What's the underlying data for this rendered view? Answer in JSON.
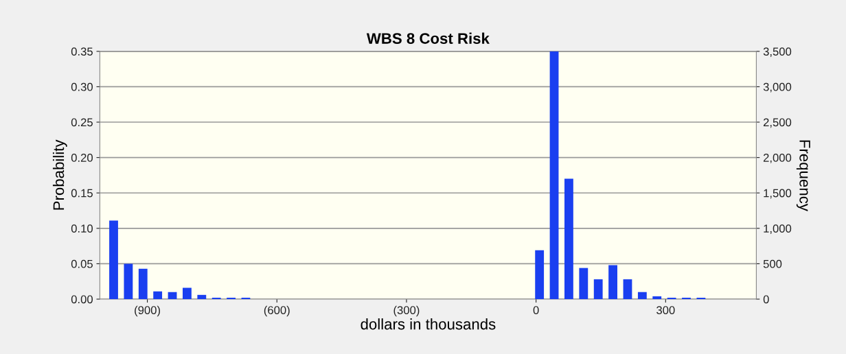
{
  "chart_data": {
    "type": "histogram",
    "title": "WBS 8 Cost Risk",
    "xlabel": "dollars in thousands",
    "ylabel": "Probability",
    "y2label": "Frequency",
    "bins": [
      -995,
      -961,
      -927,
      -893,
      -859,
      -825,
      -791,
      -757,
      -723,
      -689,
      -655,
      -621,
      -587,
      -553,
      -519,
      -485,
      -451,
      -417,
      -383,
      -349,
      -315,
      -281,
      -247,
      -213,
      -179,
      -145,
      -111,
      -77,
      -43,
      -9,
      25,
      59,
      93,
      127,
      161,
      195,
      229,
      263,
      297,
      331,
      365,
      399
    ],
    "values": [
      0.111,
      0.05,
      0.043,
      0.011,
      0.01,
      0.016,
      0.006,
      0.002,
      0.002,
      0.002,
      0,
      0,
      0,
      0,
      0,
      0,
      0,
      0,
      0,
      0,
      0,
      0,
      0,
      0,
      0,
      0,
      0,
      0,
      0,
      0.069,
      0.35,
      0.17,
      0.044,
      0.028,
      0.048,
      0.028,
      0.01,
      0.004,
      0.002,
      0.002,
      0.002
    ],
    "color": "#1a3ff0",
    "xlim": [
      -1010,
      510
    ],
    "xticks": [
      {
        "value": -900,
        "label": "(900)"
      },
      {
        "value": -600,
        "label": "(600)"
      },
      {
        "value": -300,
        "label": "(300)"
      },
      0,
      300
    ],
    "ylim": [
      0,
      0.35
    ],
    "yticks": [
      {
        "value": 0,
        "label": "0.00"
      },
      {
        "value": 0.05,
        "label": "0.05"
      },
      {
        "value": 0.1,
        "label": "0.10"
      },
      {
        "value": 0.15,
        "label": "0.15"
      },
      {
        "value": 0.2,
        "label": "0.20"
      },
      {
        "value": 0.25,
        "label": "0.25"
      },
      {
        "value": 0.3,
        "label": "0.30"
      },
      {
        "value": 0.35,
        "label": "0.35"
      }
    ],
    "y2lim": [
      0,
      3500
    ],
    "y2ticks": [
      0,
      {
        "value": 500,
        "label": "500"
      },
      {
        "value": 1000,
        "label": "1,000"
      },
      {
        "value": 1500,
        "label": "1,500"
      },
      {
        "value": 2000,
        "label": "2,000"
      },
      {
        "value": 2500,
        "label": "2,500"
      },
      {
        "value": 3000,
        "label": "3,000"
      },
      {
        "value": 3500,
        "label": "3,500"
      }
    ],
    "grid": "y",
    "legend": false
  }
}
